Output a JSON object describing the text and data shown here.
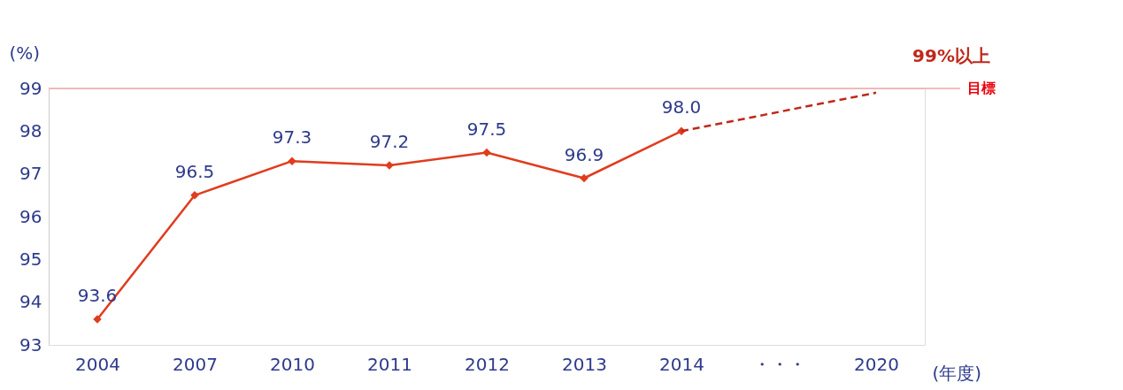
{
  "chart_data": {
    "type": "line",
    "xlabel": "(年度)",
    "ylabel": "(%)",
    "categories": [
      "2004",
      "2007",
      "2010",
      "2011",
      "2012",
      "2013",
      "2014",
      "・・・",
      "2020"
    ],
    "series": [
      {
        "color": "#e03c1e",
        "values": [
          93.6,
          96.5,
          97.3,
          97.2,
          97.5,
          96.9,
          98.0,
          null,
          null
        ],
        "value_labels": [
          "93.6",
          "96.5",
          "97.3",
          "97.2",
          "97.5",
          "96.9",
          "98.0",
          null,
          null
        ],
        "marker": "diamond",
        "line_style": "solid"
      },
      {
        "color": "#c0281a",
        "values": [
          null,
          null,
          null,
          null,
          null,
          null,
          98.0,
          null,
          98.9
        ],
        "marker": "none",
        "line_style": "dashed"
      }
    ],
    "ylim": [
      93,
      99
    ],
    "yticks": [
      93,
      94,
      95,
      96,
      97,
      98,
      99
    ],
    "grid": false,
    "ref_lines": [
      {
        "axis": "y",
        "value": 99,
        "label": "目標",
        "color": "#f4a6a6"
      }
    ],
    "annotations": [
      "99%以上"
    ]
  }
}
